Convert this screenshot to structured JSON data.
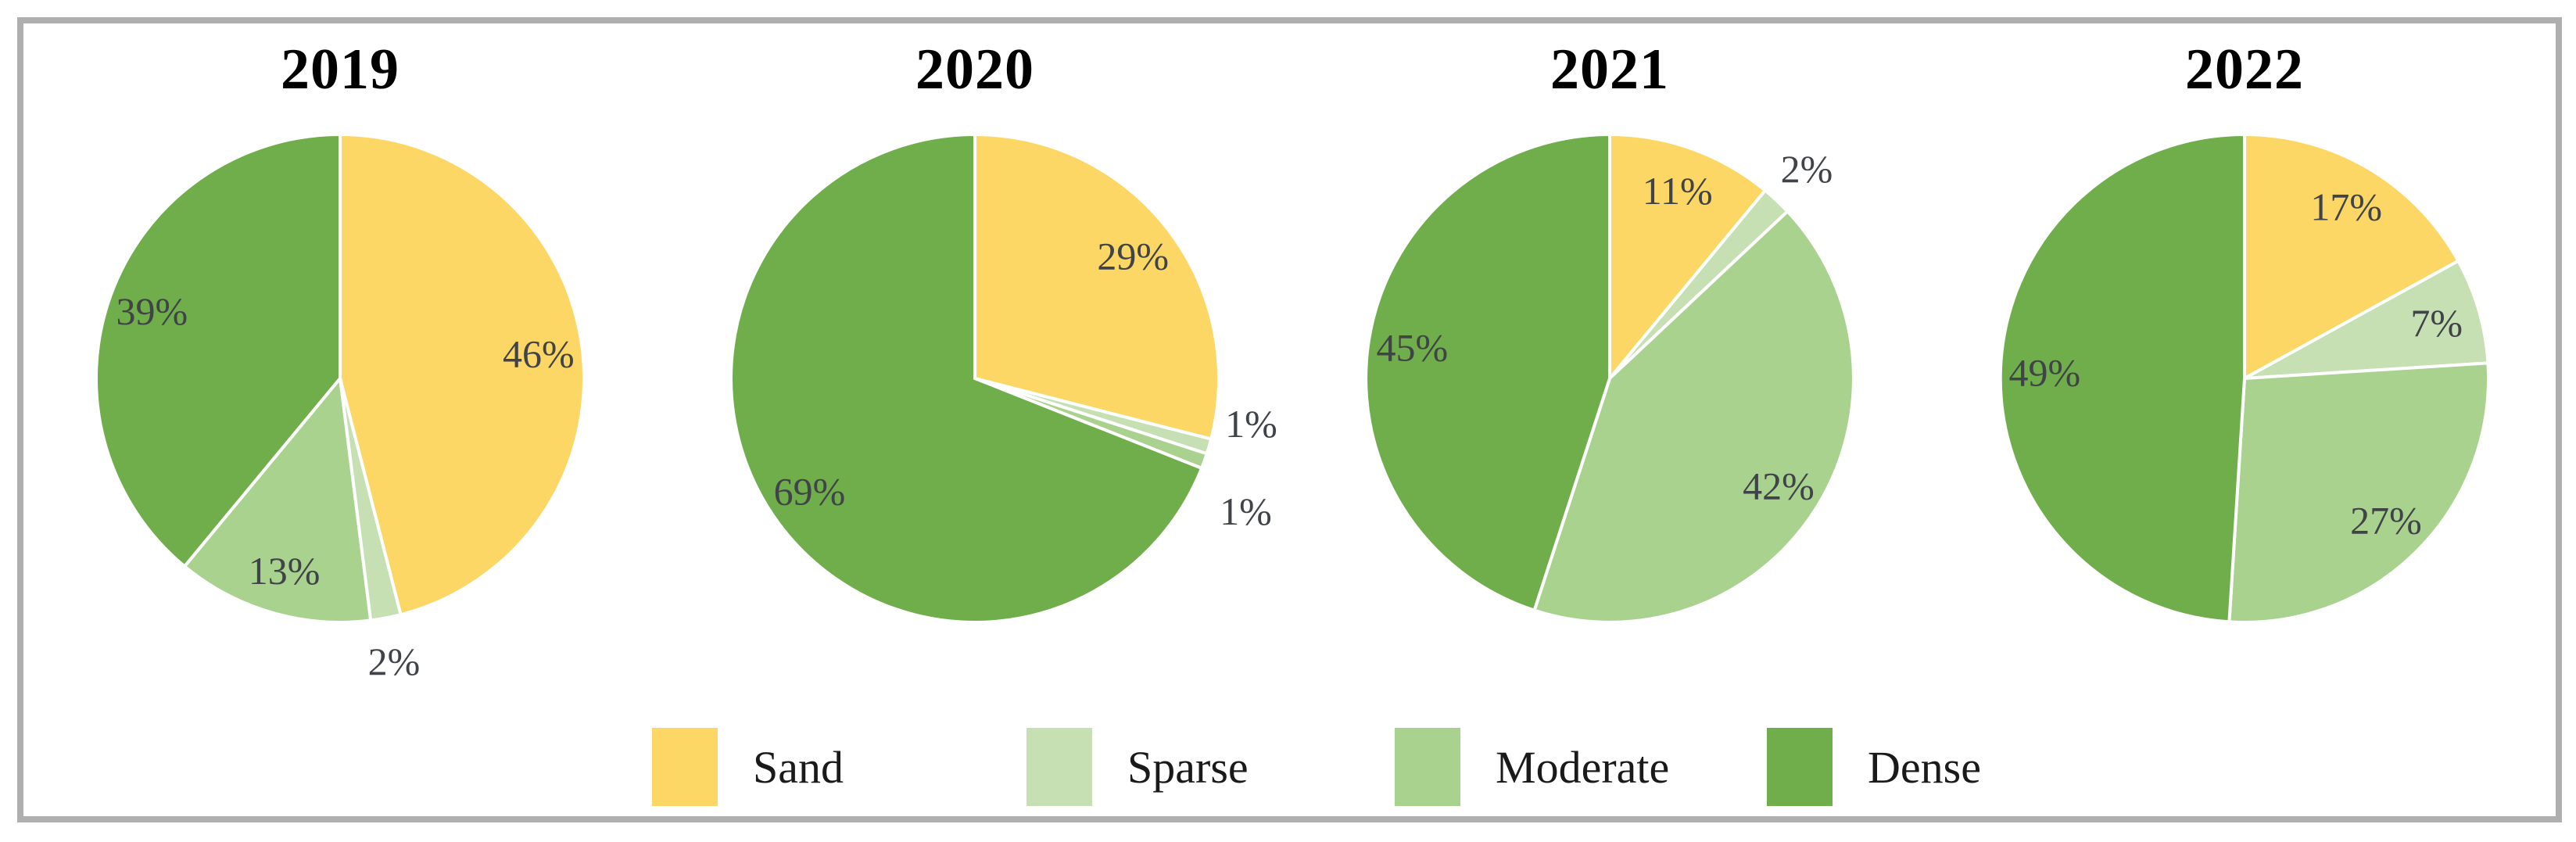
{
  "chart_data": {
    "type": "pie",
    "title": "",
    "categories": [
      "Sand",
      "Sparse",
      "Moderate",
      "Dense"
    ],
    "colors": [
      "#FCD765",
      "#C6E0B4",
      "#A8D28E",
      "#6FAE4B"
    ],
    "pies": [
      {
        "title": "2019",
        "values": [
          46,
          2,
          13,
          39
        ]
      },
      {
        "title": "2020",
        "values": [
          29,
          1,
          1,
          69
        ]
      },
      {
        "title": "2021",
        "values": [
          11,
          2,
          42,
          45
        ]
      },
      {
        "title": "2022",
        "values": [
          17,
          7,
          27,
          49
        ]
      }
    ],
    "value_suffix": "%",
    "start_angle": "12-oclock",
    "direction": "clockwise",
    "legend_position": "bottom",
    "slice_separator_color": "#FFFFFF",
    "label_color": "#404347",
    "title_color": "#000000",
    "legend_text_color": "#1A1A1A"
  },
  "frame": {
    "border_color": "#AFAFAF",
    "background": "#FFFFFF"
  }
}
